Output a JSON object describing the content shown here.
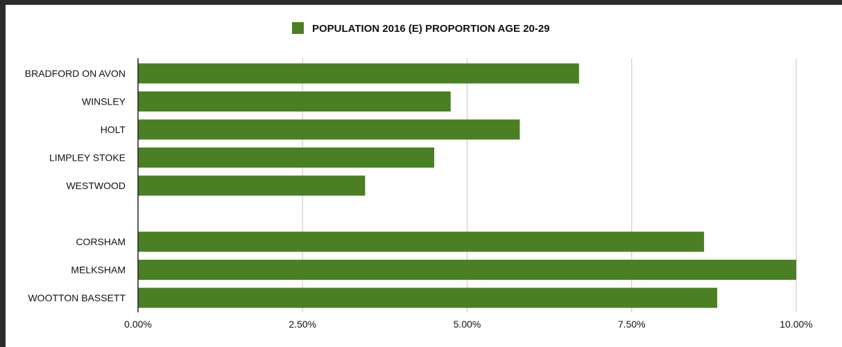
{
  "chart_data": {
    "type": "bar",
    "orientation": "horizontal",
    "categories": [
      "BRADFORD ON AVON",
      "WINSLEY",
      "HOLT",
      "LIMPLEY STOKE",
      "WESTWOOD",
      "",
      "CORSHAM",
      "MELKSHAM",
      "WOOTTON BASSETT"
    ],
    "series": [
      {
        "name": "POPULATION 2016 (E) PROPORTION AGE 20-29",
        "color": "#4a7f23",
        "values": [
          6.7,
          4.75,
          5.8,
          4.5,
          3.45,
          null,
          8.6,
          10.0,
          8.8
        ]
      }
    ],
    "xlim": [
      0,
      10
    ],
    "xticks": [
      0,
      2.5,
      5,
      7.5,
      10
    ],
    "xtick_labels": [
      "0.00%",
      "2.50%",
      "5.00%",
      "7.50%",
      "10.00%"
    ],
    "grid": "vertical",
    "legend_position": "top-center",
    "colors": {
      "bar": "#4a7f23",
      "grid": "#cccccc",
      "axis": "#222222"
    }
  }
}
